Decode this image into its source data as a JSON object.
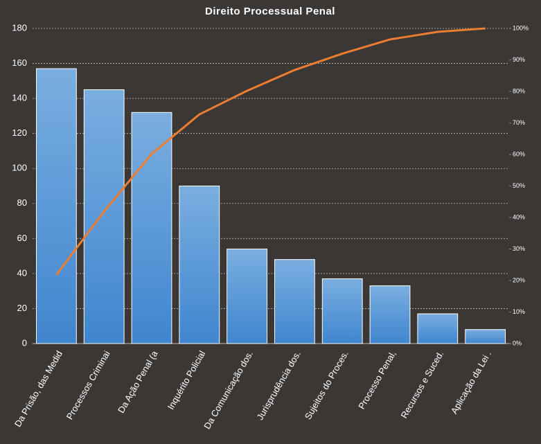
{
  "chart_data": {
    "type": "pareto",
    "title": "Direito  Processual  Penal",
    "categories": [
      "Da Prisão, das Medid",
      "Processos Criminai",
      "Da Ação Penal (a",
      "Inquérito Policial",
      "Da Comunicação dos.",
      "Jurisprudência dos.",
      "Sujeitos do Proces.",
      "Processo Penal,",
      "Recursos e Suced.",
      "Aplicação da Lei ."
    ],
    "series": [
      {
        "type": "bar",
        "color": "#5b9bd5",
        "values": [
          157,
          145,
          132,
          90,
          54,
          48,
          37,
          33,
          17,
          8
        ]
      },
      {
        "type": "line",
        "axis": "y2",
        "color": "#ed7d31",
        "values": [
          21.8,
          41.9,
          60.2,
          72.7,
          80.2,
          86.8,
          92.0,
          96.5,
          98.9,
          100
        ]
      }
    ],
    "ylim": [
      0,
      180
    ],
    "yticks": [
      0,
      20,
      40,
      60,
      80,
      100,
      120,
      140,
      160,
      180
    ],
    "y2lim": [
      0,
      100
    ],
    "y2ticks": [
      {
        "value": 0,
        "label": "0%"
      },
      {
        "value": 10,
        "label": "10%"
      },
      {
        "value": 20,
        "label": "20%"
      },
      {
        "value": 30,
        "label": "30%"
      },
      {
        "value": 40,
        "label": "40%"
      },
      {
        "value": 50,
        "label": "50%"
      },
      {
        "value": 60,
        "label": "60%"
      },
      {
        "value": 70,
        "label": "70%"
      },
      {
        "value": 80,
        "label": "80%"
      },
      {
        "value": 90,
        "label": "90%"
      },
      {
        "value": 100,
        "label": "100%"
      }
    ],
    "grid": true
  }
}
